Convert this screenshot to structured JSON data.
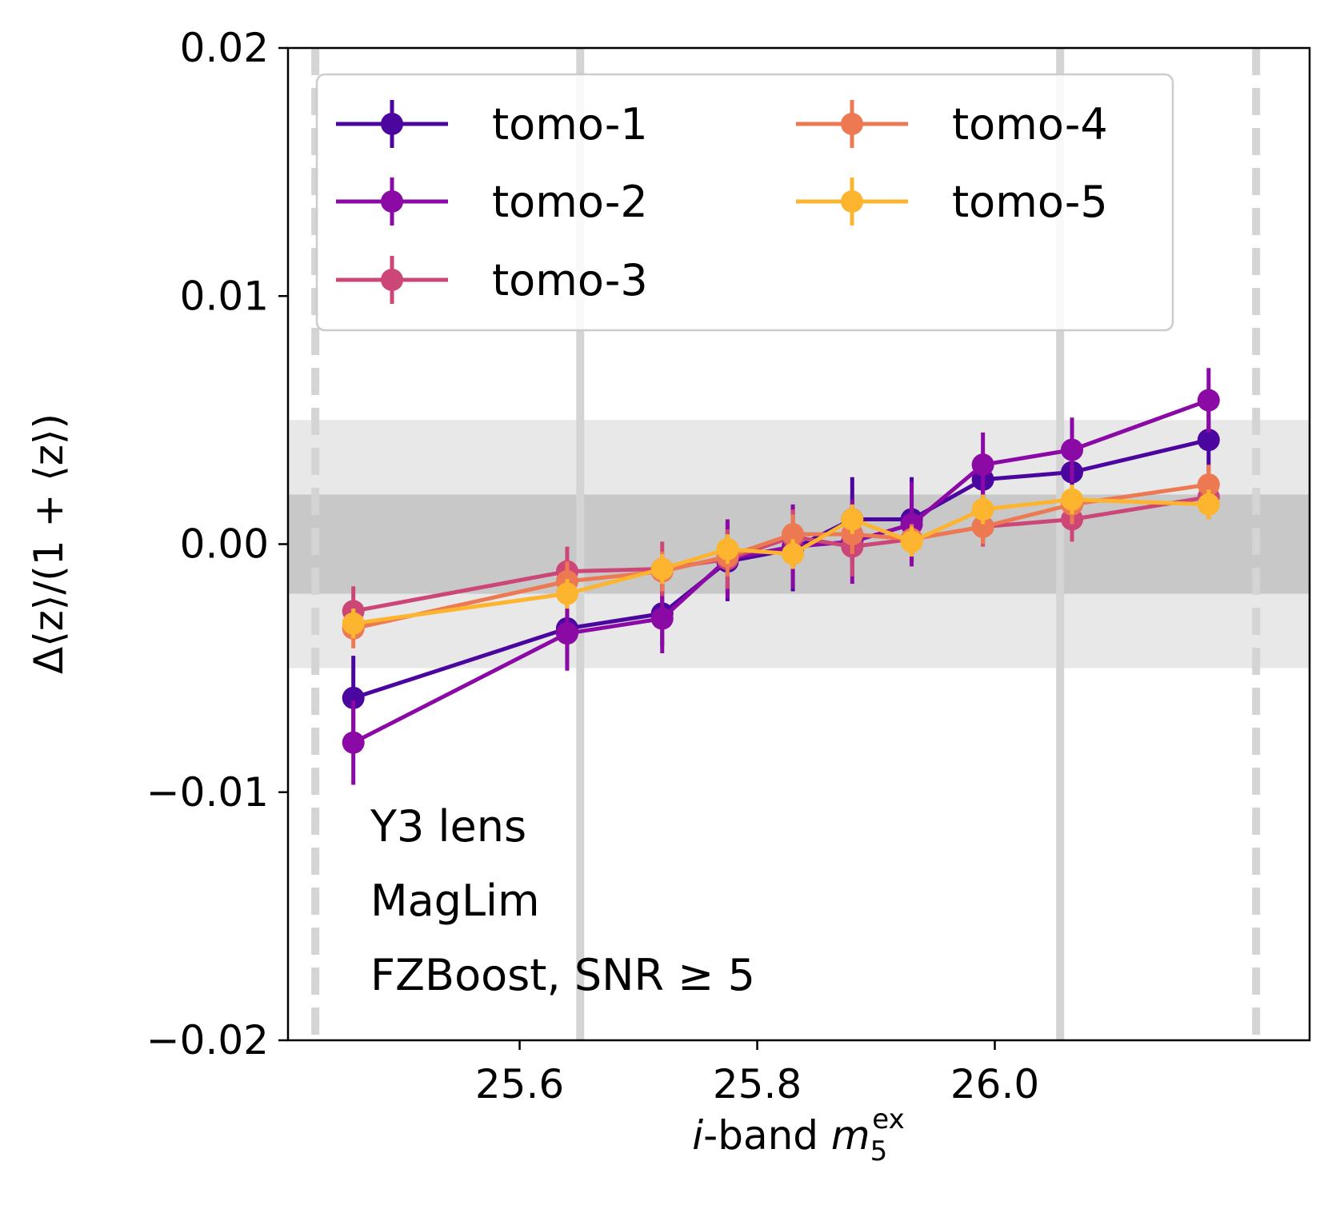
{
  "chart_data": {
    "type": "line",
    "title": "",
    "xlabel": {
      "italic_prefix": "i",
      "text": "-band ",
      "symbol": "m",
      "subscript": "5",
      "superscript": "ex"
    },
    "ylabel": "Δ⟨z⟩/(1 + ⟨z⟩)",
    "xlim": [
      25.405,
      26.265
    ],
    "ylim": [
      -0.02,
      0.02
    ],
    "xticks": [
      25.6,
      25.8,
      26.0
    ],
    "xtick_labels": [
      "25.6",
      "25.8",
      "26.0"
    ],
    "yticks": [
      -0.02,
      -0.01,
      0.0,
      0.01,
      0.02
    ],
    "ytick_labels": [
      "−0.02",
      "−0.01",
      "0.00",
      "0.01",
      "0.02"
    ],
    "legend_position": "top",
    "grid": false,
    "bands": [
      {
        "ymin": -0.005,
        "ymax": 0.005,
        "color": "#e8e8e8"
      },
      {
        "ymin": -0.002,
        "ymax": 0.002,
        "color": "#c8c8c8"
      }
    ],
    "vlines_solid": [
      25.651,
      26.055
    ],
    "vlines_dashed": [
      25.428,
      26.22
    ],
    "annotations": [
      "Y3 lens",
      "MagLim",
      "FZBoost, SNR ≥ 5"
    ],
    "x": [
      25.46,
      25.64,
      25.72,
      25.775,
      25.83,
      25.88,
      25.93,
      25.99,
      26.065,
      26.18
    ],
    "series": [
      {
        "name": "tomo-1",
        "color": "#4c06a0",
        "values": [
          -0.0062,
          -0.0034,
          -0.0028,
          -0.0007,
          -0.0002,
          0.001,
          0.001,
          0.0026,
          0.0029,
          0.0042
        ],
        "errors": [
          0.0017,
          0.0014,
          0.0013,
          0.0016,
          0.0017,
          0.0017,
          0.0017,
          0.0011,
          0.0011,
          0.0013
        ]
      },
      {
        "name": "tomo-2",
        "color": "#8b0aa5",
        "values": [
          -0.008,
          -0.0036,
          -0.003,
          -0.0006,
          -0.0001,
          0.0001,
          0.0008,
          0.0032,
          0.0038,
          0.0058
        ],
        "errors": [
          0.0017,
          0.0015,
          0.0014,
          0.0016,
          0.0017,
          0.0017,
          0.0017,
          0.0013,
          0.0013,
          0.0013
        ]
      },
      {
        "name": "tomo-3",
        "color": "#cc4778",
        "values": [
          -0.0027,
          -0.0011,
          -0.001,
          -0.0006,
          0.0003,
          -0.0001,
          0.0002,
          0.0007,
          0.001,
          0.0019
        ],
        "errors": [
          0.001,
          0.001,
          0.0011,
          0.0012,
          0.0011,
          0.0012,
          0.0006,
          0.0008,
          0.0009,
          0.0009
        ]
      },
      {
        "name": "tomo-4",
        "color": "#ed7953",
        "values": [
          -0.0034,
          -0.0015,
          -0.0011,
          -0.0005,
          0.0004,
          0.0004,
          0.0002,
          0.0007,
          0.0016,
          0.0024
        ],
        "errors": [
          0.0008,
          0.0008,
          0.0008,
          0.0008,
          0.0008,
          0.0008,
          0.0006,
          0.0007,
          0.0008,
          0.0008
        ]
      },
      {
        "name": "tomo-5",
        "color": "#fdb42f",
        "values": [
          -0.0032,
          -0.002,
          -0.001,
          -0.0002,
          -0.0004,
          0.001,
          0.0001,
          0.0014,
          0.0018,
          0.0016
        ],
        "errors": [
          0.0006,
          0.0006,
          0.0006,
          0.0006,
          0.0006,
          0.0006,
          0.0006,
          0.0006,
          0.0006,
          0.0006
        ]
      }
    ]
  }
}
